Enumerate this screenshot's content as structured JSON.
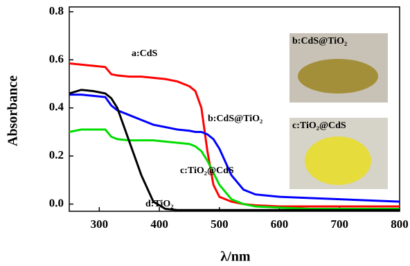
{
  "chart_data": {
    "type": "line",
    "x_label": "λ/nm",
    "y_label": "Absorbance",
    "x": [
      250,
      270,
      290,
      310,
      320,
      330,
      350,
      370,
      390,
      410,
      430,
      450,
      460,
      470,
      480,
      490,
      500,
      520,
      540,
      560,
      600,
      650,
      700,
      750,
      800
    ],
    "series": [
      {
        "name": "a:CdS",
        "color": "#ff0000",
        "values": [
          0.585,
          0.58,
          0.575,
          0.57,
          0.54,
          0.535,
          0.53,
          0.53,
          0.525,
          0.52,
          0.51,
          0.49,
          0.47,
          0.4,
          0.22,
          0.08,
          0.03,
          0.01,
          0.0,
          -0.005,
          -0.01,
          -0.01,
          -0.01,
          -0.01,
          -0.01
        ]
      },
      {
        "name": "b:CdS@TiO₂",
        "color": "#0000ff",
        "values": [
          0.455,
          0.455,
          0.45,
          0.445,
          0.41,
          0.39,
          0.37,
          0.35,
          0.33,
          0.32,
          0.31,
          0.305,
          0.3,
          0.3,
          0.29,
          0.27,
          0.23,
          0.12,
          0.06,
          0.04,
          0.03,
          0.025,
          0.02,
          0.015,
          0.01
        ]
      },
      {
        "name": "c:TiO₂@CdS",
        "color": "#00dd00",
        "values": [
          0.3,
          0.31,
          0.31,
          0.31,
          0.28,
          0.27,
          0.265,
          0.265,
          0.265,
          0.26,
          0.255,
          0.25,
          0.24,
          0.22,
          0.18,
          0.13,
          0.08,
          0.02,
          0.0,
          -0.01,
          -0.015,
          -0.02,
          -0.02,
          -0.02,
          -0.02
        ]
      },
      {
        "name": "d:TiO₂",
        "color": "#000000",
        "values": [
          0.46,
          0.475,
          0.47,
          0.46,
          0.44,
          0.4,
          0.26,
          0.12,
          0.01,
          -0.02,
          -0.025,
          -0.025,
          -0.025,
          -0.025,
          -0.025,
          -0.025,
          -0.025,
          -0.025,
          -0.025,
          -0.025,
          -0.025,
          -0.025,
          -0.025,
          -0.025,
          -0.025
        ]
      }
    ],
    "xlim": [
      250,
      800
    ],
    "xticks": [
      300,
      400,
      500,
      600,
      700,
      800
    ],
    "ylim": [
      -0.03,
      0.82
    ],
    "yticks": [
      {
        "value": 0,
        "label": "0.0"
      },
      0.2,
      0.4,
      0.6,
      0.8
    ],
    "insets": [
      {
        "label": "b:CdS@TiO₂"
      },
      {
        "label": "c:TiO₂@CdS"
      }
    ]
  }
}
